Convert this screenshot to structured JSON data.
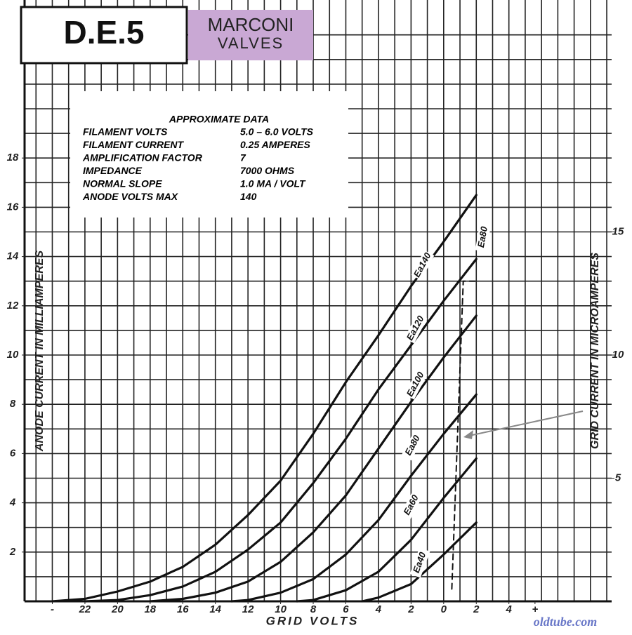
{
  "chart_data": {
    "type": "line",
    "title": "D.E.5",
    "subtitle_lines": [
      "MARCONI",
      "VALVES"
    ],
    "x_label": "GRID VOLTS",
    "y_label": "ANODE CURRENT IN MILLIAMPERES",
    "y2_label": "GRID CURRENT IN MICROAMPERES",
    "watermark": "oldtube.com",
    "info_box": {
      "title": "APPROXIMATE DATA",
      "rows": [
        [
          "FILAMENT VOLTS",
          "5.0 – 6.0 VOLTS"
        ],
        [
          "FILAMENT CURRENT",
          "0.25 AMPERES"
        ],
        [
          "AMPLIFICATION FACTOR",
          "7"
        ],
        [
          "IMPEDANCE",
          "7000 OHMS"
        ],
        [
          "NORMAL SLOPE",
          "1.0 MA / VOLT"
        ],
        [
          "ANODE VOLTS MAX",
          "140"
        ]
      ]
    },
    "xlim": [
      -25.7,
      10.3
    ],
    "ylim": [
      0,
      24
    ],
    "y2lim": [
      0,
      24
    ],
    "xticks": [
      {
        "value": -24,
        "label": "-"
      },
      {
        "value": -22,
        "label": "22"
      },
      {
        "value": -20,
        "label": "20"
      },
      {
        "value": -18,
        "label": "18"
      },
      {
        "value": -16,
        "label": "16"
      },
      {
        "value": -14,
        "label": "14"
      },
      {
        "value": -12,
        "label": "12"
      },
      {
        "value": -10,
        "label": "10"
      },
      {
        "value": -8,
        "label": "8"
      },
      {
        "value": -6,
        "label": "6"
      },
      {
        "value": -4,
        "label": "4"
      },
      {
        "value": -2,
        "label": "2"
      },
      0,
      2,
      4,
      {
        "value": 5.6,
        "label": "+"
      }
    ],
    "yticks": [
      2,
      4,
      6,
      8,
      10,
      12,
      14,
      16,
      18
    ],
    "y2ticks": [
      5,
      10,
      15
    ],
    "xgrid": [
      -25,
      -24,
      -23,
      -22,
      -21,
      -20,
      -19,
      -18,
      -17,
      -16,
      -15,
      -14,
      -13,
      -12,
      -11,
      -10,
      -9,
      -8,
      -7,
      -6,
      -5,
      -4,
      -3,
      -2,
      -1,
      0,
      1,
      2,
      3,
      4,
      5,
      6,
      7,
      8,
      9,
      10
    ],
    "ygrid": [
      1,
      2,
      3,
      4,
      5,
      6,
      7,
      8,
      9,
      10,
      11,
      12,
      13,
      14,
      15,
      16,
      17,
      18,
      19,
      20,
      21,
      22,
      23
    ],
    "grid": true,
    "series": [
      {
        "name": "Ea140",
        "color": "#111111",
        "x": [
          -24,
          -22,
          -20,
          -18,
          -16,
          -14,
          -12,
          -10,
          -8,
          -6,
          -4,
          -2,
          0,
          2
        ],
        "values": [
          0,
          0.1,
          0.4,
          0.8,
          1.4,
          2.3,
          3.5,
          4.9,
          6.8,
          8.9,
          10.8,
          12.8,
          14.6,
          16.5
        ]
      },
      {
        "name": "Ea120",
        "color": "#111111",
        "x": [
          -22,
          -20,
          -18,
          -16,
          -14,
          -12,
          -10,
          -8,
          -6,
          -4,
          -2,
          0,
          2
        ],
        "values": [
          0,
          0.05,
          0.25,
          0.6,
          1.2,
          2.1,
          3.2,
          4.8,
          6.6,
          8.6,
          10.4,
          12.2,
          13.9
        ]
      },
      {
        "name": "Ea100",
        "color": "#111111",
        "x": [
          -18,
          -16,
          -14,
          -12,
          -10,
          -8,
          -6,
          -4,
          -2,
          0,
          2
        ],
        "values": [
          0,
          0.1,
          0.35,
          0.8,
          1.6,
          2.8,
          4.3,
          6.2,
          8.1,
          9.9,
          11.6
        ]
      },
      {
        "name": "Ea80",
        "color": "#111111",
        "x": [
          -13,
          -12,
          -10,
          -8,
          -6,
          -4,
          -2,
          0,
          2
        ],
        "values": [
          0,
          0.05,
          0.35,
          0.9,
          1.9,
          3.3,
          5.1,
          6.8,
          8.4
        ]
      },
      {
        "name": "Ea60",
        "color": "#111111",
        "x": [
          -9,
          -8,
          -6,
          -4,
          -2,
          0,
          2
        ],
        "values": [
          0,
          0.05,
          0.45,
          1.2,
          2.5,
          4.2,
          5.8
        ]
      },
      {
        "name": "Ea40",
        "color": "#111111",
        "x": [
          -5,
          -4,
          -2,
          0,
          2
        ],
        "values": [
          0,
          0.15,
          0.7,
          1.9,
          3.2
        ]
      },
      {
        "name": "Ea80",
        "color": "#111111",
        "axis": "y2",
        "dashed": true,
        "x": [
          0.5,
          1.2,
          2
        ],
        "values": [
          0.5,
          13,
          13
        ]
      }
    ]
  }
}
